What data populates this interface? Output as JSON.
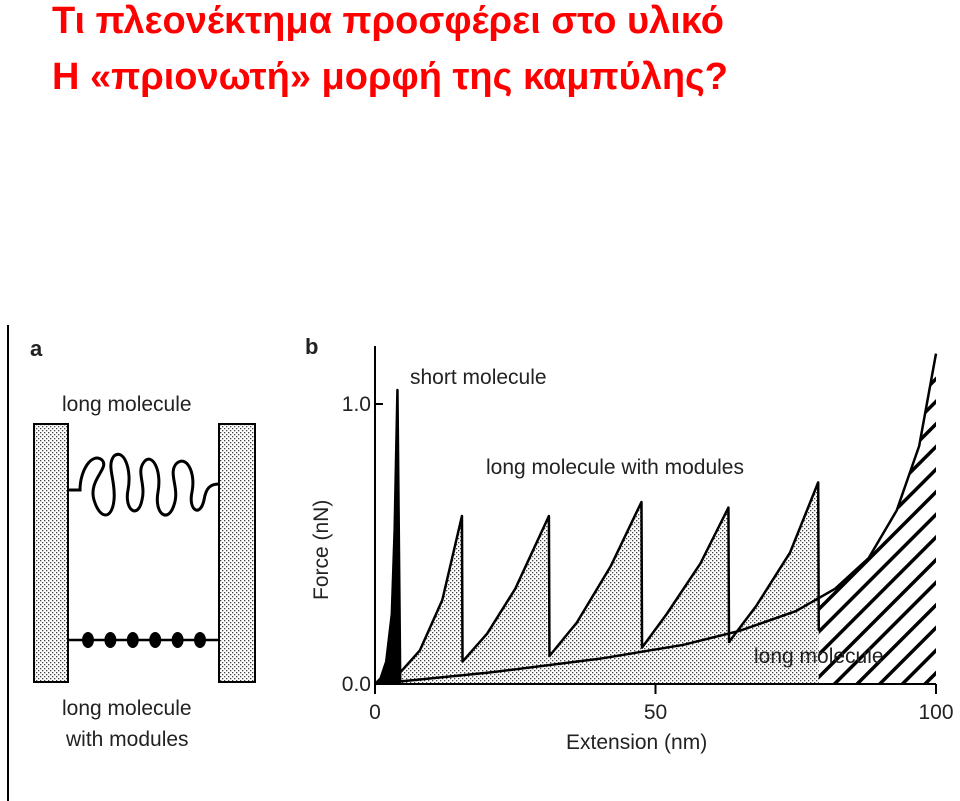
{
  "slide": {
    "title_line1": "Τι πλεονέκτημα προσφέρει στο υλικό",
    "title_line2": "Η «πριονωτή» μορφή της καμπύλης?",
    "title_color": "#ff0000"
  },
  "panel_a": {
    "letter": "a",
    "top_label": "long molecule",
    "bottom_label_line1": "long molecule",
    "bottom_label_line2": "with modules",
    "module_count": 6
  },
  "panel_b": {
    "letter": "b",
    "annotations": {
      "short": "short molecule",
      "modules": "long molecule with modules",
      "long": "long molecule"
    }
  },
  "chart_data": {
    "type": "line",
    "xlabel": "Extension (nm)",
    "ylabel": "Force (nN)",
    "xlim": [
      0,
      100
    ],
    "ylim": [
      0,
      1.2
    ],
    "xticks": [
      "0",
      "50",
      "100"
    ],
    "yticks": [
      "0.0",
      "1.0"
    ],
    "series": [
      {
        "name": "short molecule",
        "style": "solid-fill",
        "x": [
          0,
          1,
          2,
          3,
          3.5,
          4,
          4.5
        ],
        "y": [
          0.0,
          0.02,
          0.08,
          0.25,
          0.55,
          1.05,
          0.0
        ]
      },
      {
        "name": "long molecule with modules",
        "style": "dotted-fill",
        "x": [
          0,
          4,
          8,
          12,
          15.5,
          15.6,
          20,
          25,
          31,
          31.1,
          36,
          42,
          47.5,
          47.6,
          52,
          58,
          63,
          63.1,
          68,
          74,
          79,
          79.1
        ],
        "y": [
          0.0,
          0.03,
          0.12,
          0.3,
          0.6,
          0.08,
          0.18,
          0.34,
          0.6,
          0.1,
          0.22,
          0.42,
          0.65,
          0.13,
          0.25,
          0.43,
          0.63,
          0.15,
          0.28,
          0.47,
          0.72,
          0.19
        ]
      },
      {
        "name": "long molecule",
        "style": "hatched-fill",
        "x": [
          0,
          20,
          40,
          55,
          65,
          75,
          82,
          88,
          93,
          97,
          100
        ],
        "y": [
          0.0,
          0.04,
          0.09,
          0.14,
          0.19,
          0.26,
          0.34,
          0.45,
          0.62,
          0.85,
          1.18
        ]
      }
    ]
  }
}
